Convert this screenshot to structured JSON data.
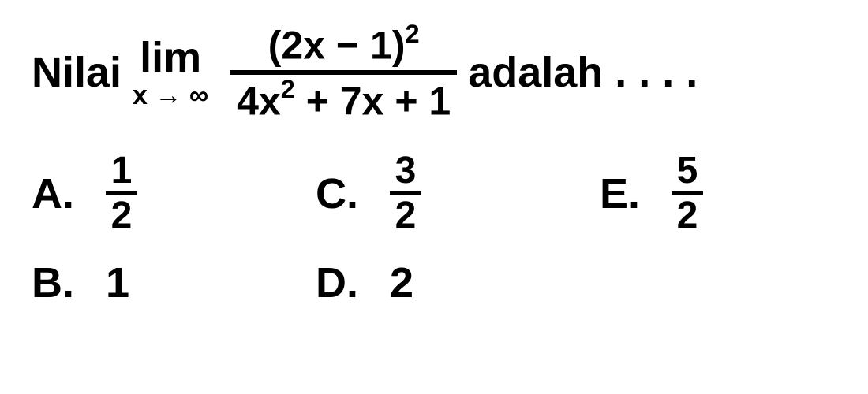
{
  "question": {
    "prefix": "Nilai",
    "limit_top": "lim",
    "limit_var": "x",
    "limit_arrow": "→",
    "limit_target": "∞",
    "numerator_base": "(2x − 1)",
    "numerator_exp": "2",
    "denominator_a": "4x",
    "denominator_a_exp": "2",
    "denominator_rest": " + 7x + 1",
    "suffix": "adalah . . . ."
  },
  "options": {
    "A": {
      "letter": "A.",
      "num": "1",
      "den": "2"
    },
    "B": {
      "letter": "B.",
      "value": "1"
    },
    "C": {
      "letter": "C.",
      "num": "3",
      "den": "2"
    },
    "D": {
      "letter": "D.",
      "value": "2"
    },
    "E": {
      "letter": "E.",
      "num": "5",
      "den": "2"
    }
  },
  "style": {
    "text_color": "#000000",
    "background": "#ffffff",
    "main_fontsize": 54,
    "sub_fontsize": 34,
    "frac_fontsize": 50,
    "opt_frac_fontsize": 48,
    "font_weight": 900,
    "line_thickness": 6
  }
}
